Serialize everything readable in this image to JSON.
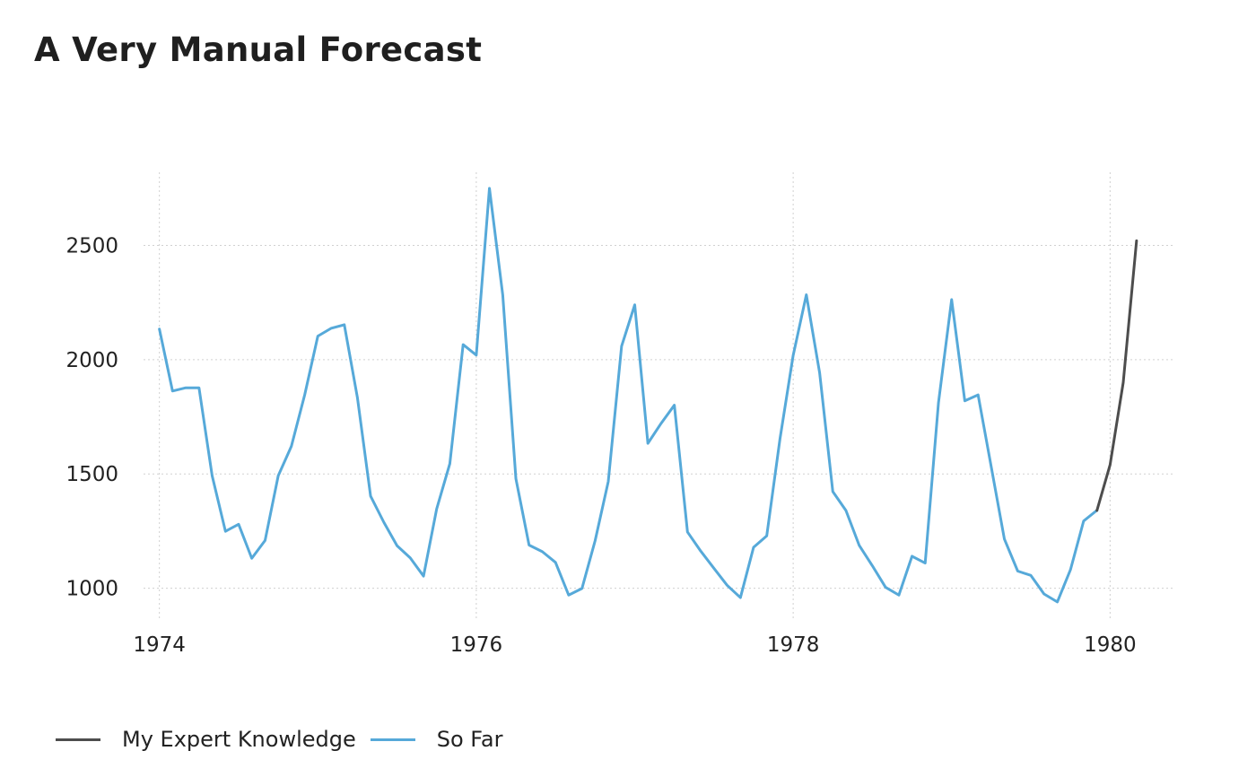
{
  "title": "A Very Manual Forecast",
  "chart_data": {
    "type": "line",
    "title": "A Very Manual Forecast",
    "xlabel": "",
    "ylabel": "",
    "xlim": [
      1973.9,
      1980.4
    ],
    "ylim": [
      865,
      2820
    ],
    "x_ticks": [
      1974,
      1976,
      1978,
      1980
    ],
    "y_ticks": [
      1000,
      1500,
      2000,
      2500
    ],
    "grid": true,
    "legend_position": "bottom-left",
    "series": [
      {
        "name": "My Expert Knowledge",
        "color": "#4d4d4d",
        "x": [
          1979.917,
          1980.0,
          1980.083,
          1980.167
        ],
        "y": [
          1340,
          1540,
          1900,
          2520
        ]
      },
      {
        "name": "So Far",
        "color": "#56a9d9",
        "x": [
          1974.0,
          1974.083,
          1974.167,
          1974.25,
          1974.333,
          1974.417,
          1974.5,
          1974.583,
          1974.667,
          1974.75,
          1974.833,
          1974.917,
          1975.0,
          1975.083,
          1975.167,
          1975.25,
          1975.333,
          1975.417,
          1975.5,
          1975.583,
          1975.667,
          1975.75,
          1975.833,
          1975.917,
          1976.0,
          1976.083,
          1976.167,
          1976.25,
          1976.333,
          1976.417,
          1976.5,
          1976.583,
          1976.667,
          1976.75,
          1976.833,
          1976.917,
          1977.0,
          1977.083,
          1977.167,
          1977.25,
          1977.333,
          1977.417,
          1977.5,
          1977.583,
          1977.667,
          1977.75,
          1977.833,
          1977.917,
          1978.0,
          1978.083,
          1978.167,
          1978.25,
          1978.333,
          1978.417,
          1978.5,
          1978.583,
          1978.667,
          1978.75,
          1978.833,
          1978.917,
          1979.0,
          1979.083,
          1979.167,
          1979.25,
          1979.333,
          1979.417,
          1979.5,
          1979.583,
          1979.667,
          1979.75,
          1979.833,
          1979.917
        ],
        "y": [
          2134,
          1863,
          1877,
          1877,
          1492,
          1249,
          1280,
          1131,
          1209,
          1492,
          1621,
          1846,
          2103,
          2137,
          2153,
          1833,
          1403,
          1288,
          1186,
          1133,
          1053,
          1347,
          1545,
          2066,
          2020,
          2750,
          2283,
          1479,
          1189,
          1160,
          1113,
          970,
          999,
          1208,
          1467,
          2059,
          2240,
          1634,
          1722,
          1801,
          1246,
          1162,
          1087,
          1013,
          959,
          1179,
          1229,
          1655,
          2019,
          2284,
          1942,
          1423,
          1340,
          1187,
          1098,
          1004,
          970,
          1140,
          1110,
          1812,
          2263,
          1820,
          1846,
          1531,
          1215,
          1075,
          1056,
          975,
          940,
          1081,
          1294,
          1341
        ]
      }
    ]
  },
  "legend": {
    "items": [
      {
        "label": "My Expert Knowledge",
        "color": "#4d4d4d"
      },
      {
        "label": "So Far",
        "color": "#56a9d9"
      }
    ]
  }
}
